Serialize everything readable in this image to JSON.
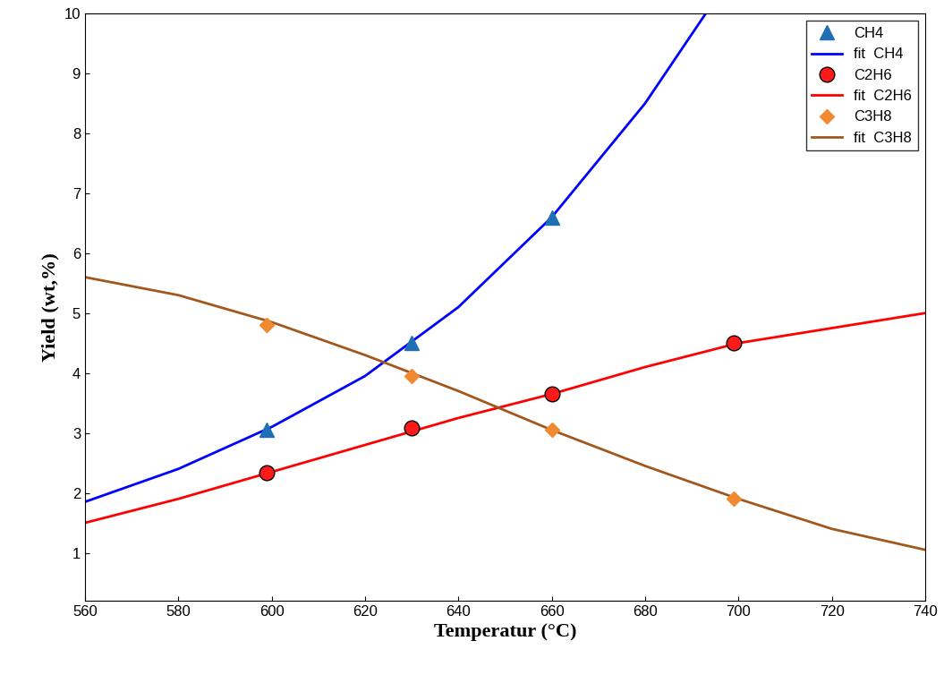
{
  "chart_data": {
    "type": "scatter",
    "x_label": "Temperatur (°C)",
    "y_label": "Yield (wt,%)",
    "xlim": [
      560,
      740
    ],
    "xticks": [
      560,
      580,
      600,
      620,
      640,
      660,
      680,
      700,
      720,
      740
    ],
    "ylim": [
      0.2,
      10
    ],
    "yticks": [
      1,
      2,
      3,
      4,
      5,
      6,
      7,
      8,
      9,
      10
    ],
    "grid": false,
    "legend": "upper right",
    "series": [
      {
        "name": "CH4",
        "type": "scatter",
        "marker": "^",
        "color": "#1f6fb4",
        "x": [
          599,
          630,
          660
        ],
        "values": [
          3.05,
          4.5,
          6.6
        ]
      },
      {
        "name": "fit  CH4",
        "type": "line",
        "line_style": "solid",
        "color": "#0000ff",
        "x": [
          560,
          580,
          600,
          620,
          640,
          660,
          680,
          693
        ],
        "values": [
          1.85,
          2.4,
          3.1,
          3.95,
          5.1,
          6.6,
          8.5,
          10.0
        ]
      },
      {
        "name": "C2H6",
        "type": "scatter",
        "marker": "o",
        "color": "#ff1a1a",
        "x": [
          599,
          630,
          660,
          699
        ],
        "values": [
          2.33,
          3.08,
          3.65,
          4.5
        ]
      },
      {
        "name": "fit  C2H6",
        "type": "line",
        "line_style": "solid",
        "color": "#ff0000",
        "x": [
          560,
          580,
          600,
          620,
          640,
          660,
          680,
          700,
          720,
          740
        ],
        "values": [
          1.5,
          1.9,
          2.35,
          2.8,
          3.25,
          3.65,
          4.1,
          4.5,
          4.75,
          5.0
        ]
      },
      {
        "name": "C3H8",
        "type": "scatter",
        "marker": "D",
        "color": "#f08a30",
        "x": [
          599,
          630,
          660,
          699
        ],
        "values": [
          4.8,
          3.95,
          3.05,
          1.9
        ]
      },
      {
        "name": "fit  C3H8",
        "type": "line",
        "line_style": "solid",
        "color": "#a0581e",
        "x": [
          560,
          580,
          600,
          620,
          640,
          660,
          680,
          700,
          720,
          740
        ],
        "values": [
          5.6,
          5.3,
          4.85,
          4.3,
          3.7,
          3.05,
          2.45,
          1.9,
          1.4,
          1.05
        ]
      }
    ]
  }
}
